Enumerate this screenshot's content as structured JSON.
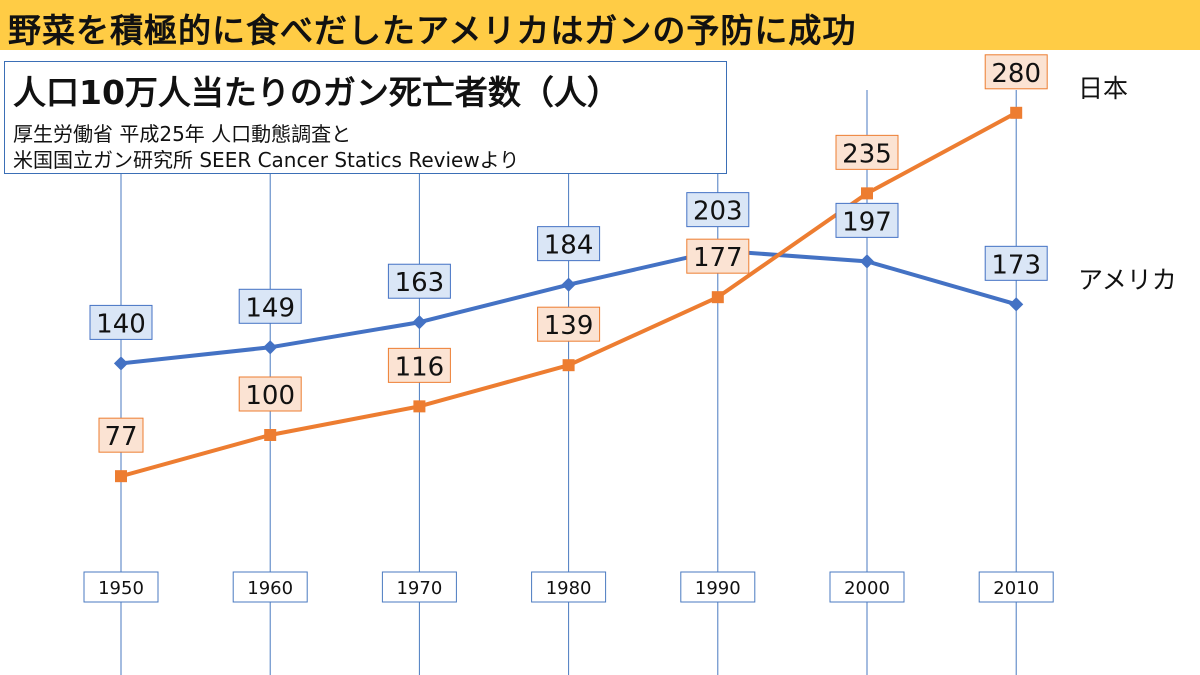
{
  "header": {
    "title": "野菜を積極的に食べだしたアメリカはガンの予防に成功"
  },
  "subtitle": {
    "main": "人口10万人当たりのガン死亡者数（人）",
    "source_line1": "厚生労働省 平成25年 人口動態調査と",
    "source_line2": "米国国立ガン研究所 SEER Cancer Statics Reviewより"
  },
  "colors": {
    "banner": "#ffcc45",
    "usa_line": "#4472c4",
    "usa_label_bg": "#dae6f6",
    "usa_label_border": "#4472c4",
    "japan_line": "#ed7d31",
    "japan_label_bg": "#fbe3d3",
    "japan_label_border": "#ed7d31",
    "gridline": "#4a7ac0"
  },
  "chart_data": {
    "type": "line",
    "categories": [
      "1950",
      "1960",
      "1970",
      "1980",
      "1990",
      "2000",
      "2010"
    ],
    "ylim": [
      0,
      300
    ],
    "grid": "vertical",
    "series": [
      {
        "name": "アメリカ",
        "values": [
          140,
          149,
          163,
          184,
          203,
          197,
          173
        ],
        "color": "#4472c4"
      },
      {
        "name": "日本",
        "values": [
          77,
          100,
          116,
          139,
          177,
          235,
          280
        ],
        "color": "#ed7d31"
      }
    ]
  }
}
